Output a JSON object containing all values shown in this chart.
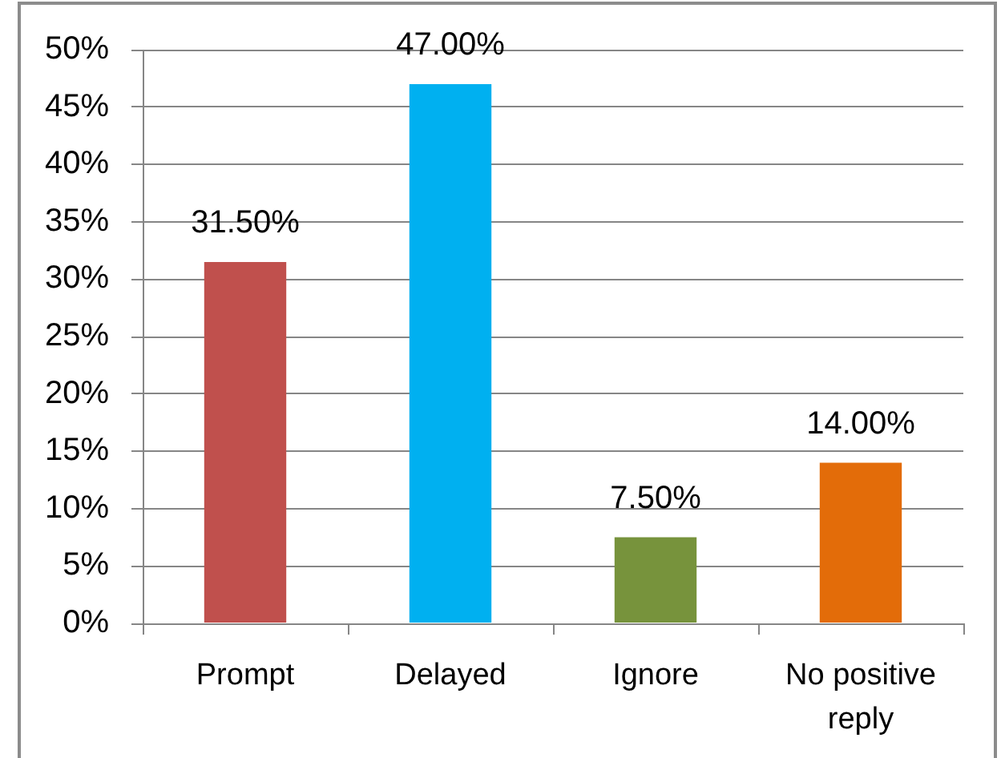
{
  "chart_data": {
    "type": "bar",
    "categories": [
      "Prompt",
      "Delayed",
      "Ignore",
      "No positive reply"
    ],
    "values": [
      31.5,
      47,
      7.5,
      14
    ],
    "colors": [
      "#c0504d",
      "#00b0f0",
      "#77933c",
      "#e36c09"
    ],
    "value_labels": [
      "31.50%",
      "47.00%",
      "7.50%",
      "14.00%"
    ],
    "ylim": [
      0,
      50
    ],
    "yticks": [
      {
        "value": 0,
        "label": "0%"
      },
      {
        "value": 5,
        "label": "5%"
      },
      {
        "value": 10,
        "label": "10%"
      },
      {
        "value": 15,
        "label": "15%"
      },
      {
        "value": 20,
        "label": "20%"
      },
      {
        "value": 25,
        "label": "25%"
      },
      {
        "value": 30,
        "label": "30%"
      },
      {
        "value": 35,
        "label": "35%"
      },
      {
        "value": 40,
        "label": "40%"
      },
      {
        "value": 45,
        "label": "45%"
      },
      {
        "value": 50,
        "label": "50%"
      }
    ],
    "grid": "y"
  }
}
